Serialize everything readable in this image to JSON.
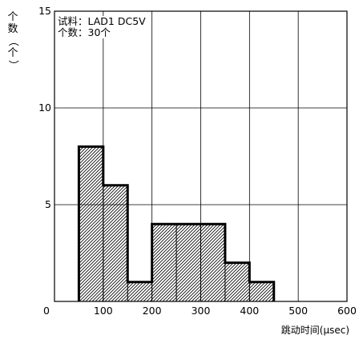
{
  "chart_data": {
    "type": "bar",
    "xlabel": "跳动时间(µsec)",
    "ylabel": [
      "个",
      "数",
      "（",
      "个",
      "）"
    ],
    "annotations": [
      "试料：LAD1 DC5V",
      "个数：30个"
    ],
    "xlim": [
      0,
      600
    ],
    "ylim": [
      0,
      15
    ],
    "x_ticks": [
      "0",
      "100",
      "200",
      "300",
      "400",
      "500",
      "600"
    ],
    "y_ticks": [
      "5",
      "10",
      "15"
    ],
    "grid": true,
    "bin_edges": [
      50,
      100,
      150,
      200,
      250,
      300,
      350,
      400,
      450
    ],
    "values": [
      8,
      6,
      1,
      4,
      4,
      4,
      2,
      1
    ]
  }
}
